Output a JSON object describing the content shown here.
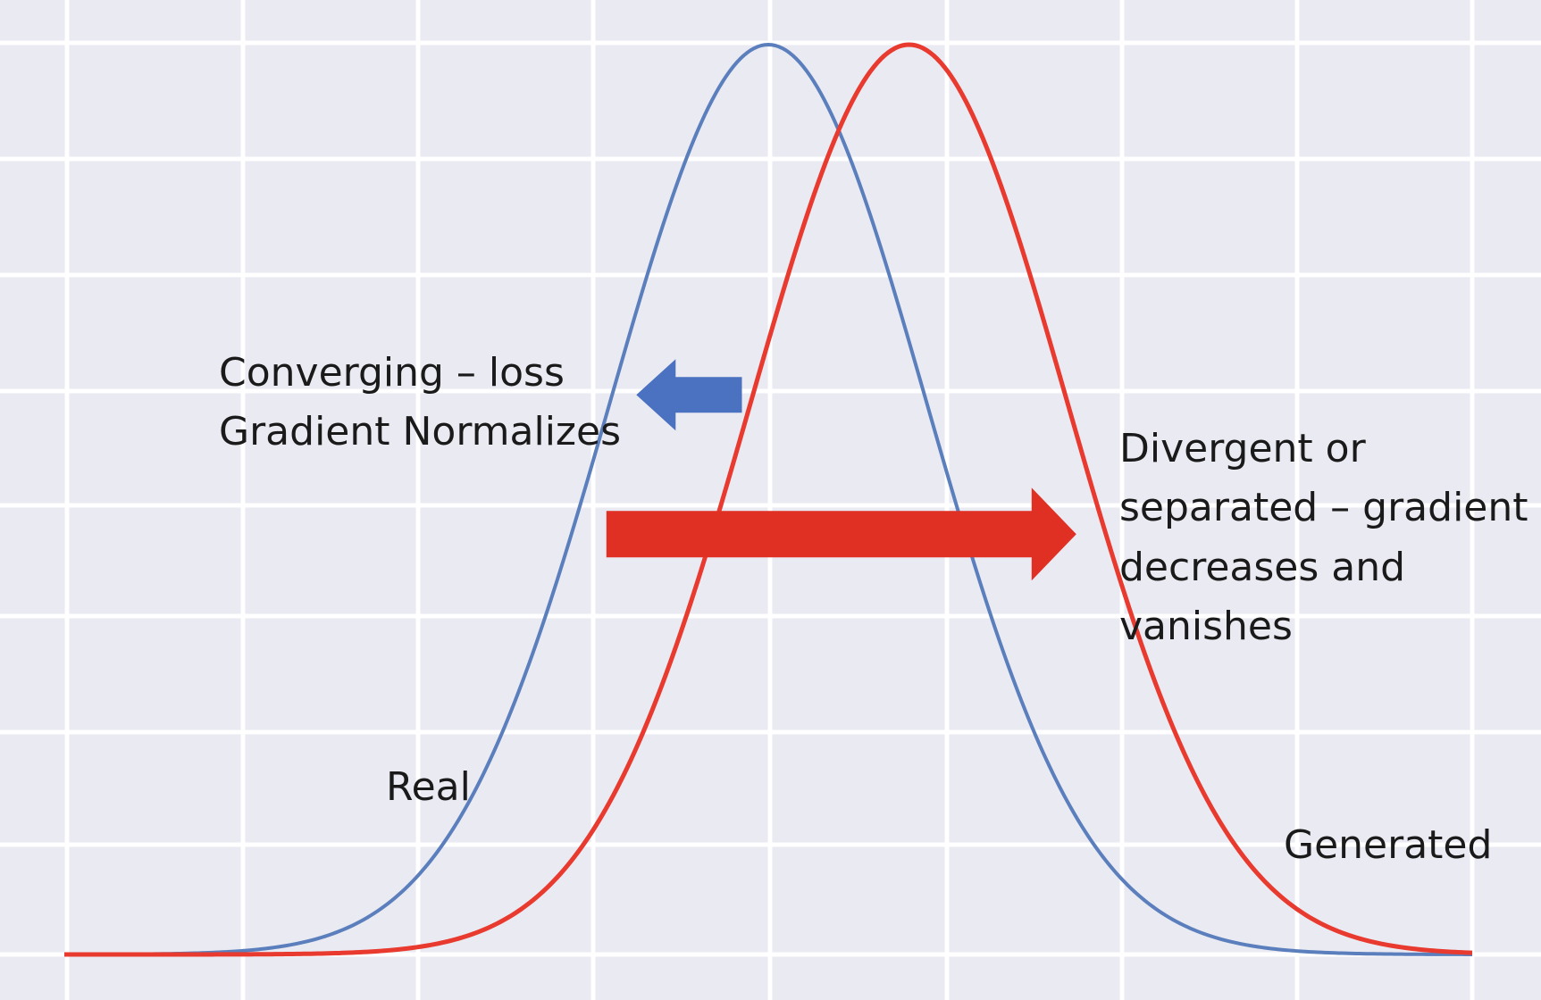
{
  "chart_data": {
    "type": "line",
    "title": "",
    "xlabel": "",
    "ylabel": "",
    "grid": true,
    "x_range": [
      -4,
      4
    ],
    "y_range": [
      0,
      1
    ],
    "series": [
      {
        "name": "Real",
        "color": "#5b7fbd",
        "distribution": "gaussian",
        "mean": 0,
        "std": 0.9,
        "peak": 1.0
      },
      {
        "name": "Generated",
        "color": "#e83a2e",
        "distribution": "gaussian",
        "mean": 0.8,
        "std": 0.9,
        "peak": 1.0
      }
    ],
    "arrows": [
      {
        "name": "converging-arrow",
        "direction": "left",
        "color": "#4a72c1",
        "from_x": -0.15,
        "to_x": -0.75,
        "y": 0.615
      },
      {
        "name": "divergent-arrow",
        "direction": "right",
        "color": "#e03024",
        "from_x": -0.92,
        "to_x": 1.75,
        "y": 0.462
      }
    ],
    "annotations": {
      "converging": [
        "Converging – loss",
        "Gradient Normalizes"
      ],
      "divergent": [
        "Divergent or",
        "separated – gradient",
        "decreases and",
        "vanishes"
      ],
      "real": "Real",
      "generated": "Generated"
    }
  }
}
